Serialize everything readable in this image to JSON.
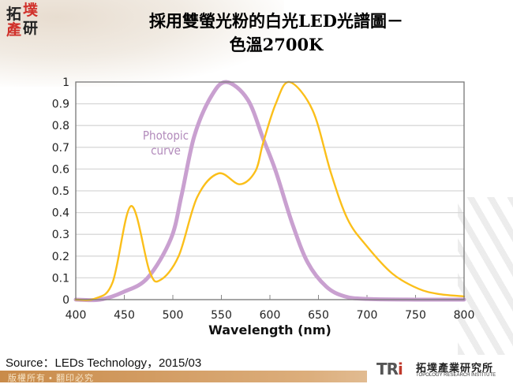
{
  "slide": {
    "title_line1": "採用雙螢光粉的白光LED光譜圖－",
    "title_line2": "色溫2700K",
    "source": "Source：LEDs Technology，2015/03",
    "footer": "版權所有 • 翻印必究",
    "logo_text": "拓墣產研",
    "tri_logo": {
      "mark": "TRi",
      "name_cn": "拓墣產業研究所",
      "name_en": "TOPOLOGY RESEARCH INSTITUTE"
    }
  },
  "chart_data": {
    "type": "line",
    "title": "",
    "xlabel": "Wavelength (nm)",
    "ylabel": "",
    "xlim": [
      400,
      800
    ],
    "ylim": [
      0,
      1
    ],
    "xticks": [
      "400",
      "450",
      "500",
      "550",
      "600",
      "650",
      "700",
      "750",
      "800"
    ],
    "yticks": [
      "0",
      "0.1",
      "0.2",
      "0.3",
      "0.4",
      "0.5",
      "0.6",
      "0.7",
      "0.8",
      "0.9",
      "1"
    ],
    "grid": "horizontal",
    "annotation": {
      "text_line1": "Photopic",
      "text_line2": "curve"
    },
    "series": [
      {
        "key": "white-led-spectrum",
        "color": "#fbbf1a",
        "x": [
          400,
          420,
          438,
          457,
          476,
          487,
          506,
          525,
          547,
          569,
          585,
          593,
          606,
          620,
          644,
          663,
          680,
          699,
          726,
          753,
          775,
          800
        ],
        "y": [
          0,
          0.005,
          0.08,
          0.43,
          0.13,
          0.09,
          0.2,
          0.47,
          0.58,
          0.53,
          0.59,
          0.72,
          0.9,
          1.0,
          0.87,
          0.58,
          0.37,
          0.25,
          0.12,
          0.05,
          0.025,
          0.015
        ]
      },
      {
        "key": "photopic-curve",
        "name": "Photopic curve",
        "color": "#c9a0d0",
        "x": [
          400,
          425,
          449,
          474,
          498,
          509,
          522,
          539,
          555,
          577,
          593,
          606,
          623,
          639,
          658,
          677,
          700,
          750,
          800
        ],
        "y": [
          0,
          0,
          0.035,
          0.1,
          0.28,
          0.48,
          0.75,
          0.93,
          1.0,
          0.92,
          0.74,
          0.59,
          0.35,
          0.17,
          0.06,
          0.015,
          0.003,
          0,
          0
        ]
      }
    ]
  }
}
